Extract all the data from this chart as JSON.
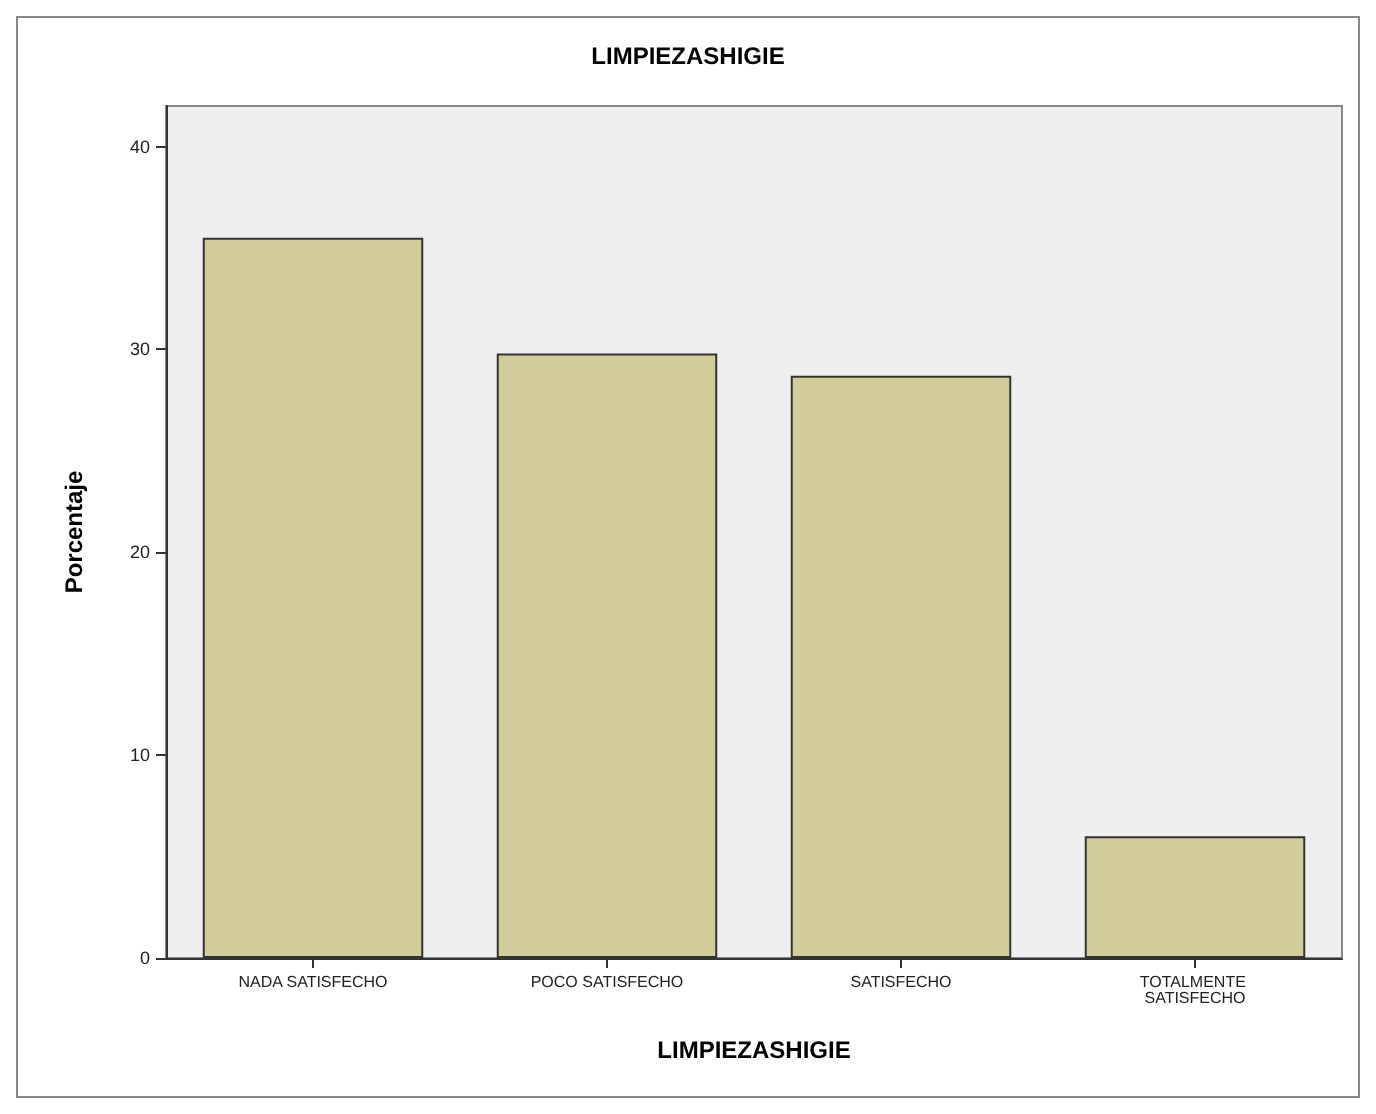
{
  "chart_data": {
    "type": "bar",
    "title": "LIMPIEZASHIGIE",
    "xlabel": "LIMPIEZASHIGIE",
    "ylabel": "Porcentaje",
    "categories": [
      "NADA SATISFECHO",
      "POCO SATISFECHO",
      "SATISFECHO",
      "TOTALMENTE SATISFECHO"
    ],
    "values": [
      35.5,
      29.8,
      28.7,
      6.0
    ],
    "color": "#d2cc98",
    "ylim": [
      0,
      42
    ],
    "yticks": [
      0,
      10,
      20,
      30,
      40
    ],
    "grid": false
  }
}
